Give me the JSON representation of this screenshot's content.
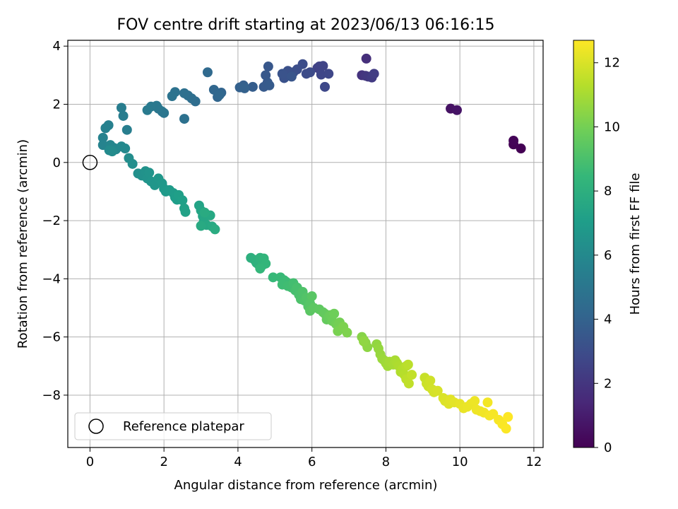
{
  "chart_data": {
    "type": "scatter",
    "title": "FOV centre drift starting at 2023/06/13 06:16:15",
    "xlabel": "Angular distance from reference (arcmin)",
    "ylabel": "Rotation from reference (arcmin)",
    "xlim": [
      -0.6,
      12.25
    ],
    "ylim": [
      -9.8,
      4.2
    ],
    "x_ticks": [
      0,
      2,
      4,
      6,
      8,
      10,
      12
    ],
    "y_ticks": [
      -8,
      -6,
      -4,
      -2,
      0,
      2,
      4
    ],
    "grid": true,
    "legend": {
      "placement": "lower-left",
      "entries": [
        "Reference platepar"
      ]
    },
    "colormap": "viridis",
    "colorbar": {
      "label": "Hours from first FF file",
      "range": [
        0,
        12.7
      ],
      "ticks": [
        0,
        2,
        4,
        6,
        8,
        10,
        12
      ],
      "colors": [
        "#440154",
        "#482878",
        "#3e4989",
        "#31688e",
        "#26828e",
        "#1f9e89",
        "#35b779",
        "#6ece58",
        "#b5de2b",
        "#fde725"
      ]
    },
    "reference_point": {
      "x": 0,
      "y": 0,
      "name": "Reference platepar"
    },
    "points": [
      [
        11.65,
        0.48,
        0.0
      ],
      [
        11.45,
        0.62,
        0.05
      ],
      [
        11.45,
        0.75,
        0.1
      ],
      [
        9.75,
        1.85,
        0.6
      ],
      [
        9.92,
        1.8,
        0.7
      ],
      [
        7.47,
        3.57,
        1.7
      ],
      [
        7.35,
        3.0,
        1.9
      ],
      [
        7.45,
        2.98,
        2.0
      ],
      [
        7.52,
        2.95,
        2.1
      ],
      [
        7.62,
        2.92,
        2.2
      ],
      [
        7.68,
        3.05,
        2.3
      ],
      [
        6.15,
        3.25,
        2.5
      ],
      [
        6.2,
        3.3,
        2.55
      ],
      [
        6.3,
        3.32,
        2.6
      ],
      [
        6.25,
        3.02,
        2.7
      ],
      [
        6.45,
        3.05,
        2.75
      ],
      [
        6.35,
        2.6,
        2.8
      ],
      [
        5.95,
        3.1,
        2.9
      ],
      [
        5.85,
        3.05,
        2.95
      ],
      [
        5.75,
        3.38,
        3.0
      ],
      [
        5.6,
        3.2,
        3.05
      ],
      [
        5.5,
        3.1,
        3.1
      ],
      [
        5.35,
        3.15,
        3.15
      ],
      [
        5.3,
        3.05,
        3.2
      ],
      [
        5.25,
        2.9,
        3.25
      ],
      [
        5.2,
        3.05,
        3.3
      ],
      [
        5.45,
        2.95,
        3.35
      ],
      [
        4.82,
        3.3,
        3.45
      ],
      [
        4.75,
        3.0,
        3.5
      ],
      [
        4.8,
        2.75,
        3.55
      ],
      [
        4.7,
        2.6,
        3.6
      ],
      [
        4.85,
        2.65,
        3.65
      ],
      [
        4.4,
        2.6,
        3.75
      ],
      [
        4.15,
        2.65,
        3.85
      ],
      [
        4.05,
        2.58,
        3.9
      ],
      [
        4.18,
        2.55,
        3.95
      ],
      [
        3.55,
        2.4,
        4.1
      ],
      [
        3.45,
        2.25,
        4.15
      ],
      [
        3.35,
        2.5,
        4.2
      ],
      [
        3.5,
        2.32,
        4.25
      ],
      [
        3.18,
        3.1,
        4.35
      ],
      [
        2.85,
        2.1,
        4.5
      ],
      [
        2.75,
        2.2,
        4.55
      ],
      [
        2.65,
        2.3,
        4.6
      ],
      [
        2.55,
        2.38,
        4.65
      ],
      [
        2.55,
        1.5,
        4.7
      ],
      [
        2.3,
        2.42,
        4.8
      ],
      [
        2.22,
        2.28,
        4.85
      ],
      [
        2.0,
        1.7,
        4.95
      ],
      [
        1.95,
        1.75,
        5.0
      ],
      [
        1.85,
        1.85,
        5.05
      ],
      [
        1.8,
        1.95,
        5.1
      ],
      [
        1.65,
        1.92,
        5.15
      ],
      [
        1.55,
        1.8,
        5.2
      ],
      [
        0.85,
        1.88,
        5.35
      ],
      [
        0.9,
        1.6,
        5.4
      ],
      [
        1.0,
        1.12,
        5.45
      ],
      [
        0.5,
        1.28,
        5.55
      ],
      [
        0.42,
        1.18,
        5.6
      ],
      [
        0.35,
        0.85,
        5.65
      ],
      [
        0.35,
        0.6,
        5.7
      ],
      [
        0.55,
        0.6,
        5.8
      ],
      [
        0.65,
        0.5,
        5.85
      ],
      [
        0.7,
        0.45,
        5.9
      ],
      [
        0.85,
        0.55,
        5.95
      ],
      [
        0.95,
        0.48,
        6.0
      ],
      [
        0.52,
        0.42,
        6.05
      ],
      [
        0.6,
        0.38,
        6.1
      ],
      [
        1.05,
        0.15,
        6.2
      ],
      [
        1.15,
        -0.05,
        6.25
      ],
      [
        1.3,
        -0.38,
        6.35
      ],
      [
        1.4,
        -0.45,
        6.4
      ],
      [
        1.5,
        -0.3,
        6.45
      ],
      [
        1.55,
        -0.55,
        6.5
      ],
      [
        1.6,
        -0.35,
        6.55
      ],
      [
        1.65,
        -0.65,
        6.6
      ],
      [
        1.75,
        -0.78,
        6.65
      ],
      [
        1.85,
        -0.55,
        6.7
      ],
      [
        1.95,
        -0.72,
        6.75
      ],
      [
        2.0,
        -0.9,
        6.8
      ],
      [
        2.05,
        -1.0,
        6.85
      ],
      [
        2.15,
        -0.95,
        6.9
      ],
      [
        2.25,
        -1.05,
        6.95
      ],
      [
        2.3,
        -1.2,
        7.0
      ],
      [
        2.35,
        -1.28,
        7.05
      ],
      [
        2.4,
        -1.12,
        7.1
      ],
      [
        2.5,
        -1.3,
        7.15
      ],
      [
        2.55,
        -1.58,
        7.2
      ],
      [
        2.58,
        -1.7,
        7.25
      ],
      [
        2.95,
        -1.48,
        7.35
      ],
      [
        3.0,
        -1.65,
        7.4
      ],
      [
        3.05,
        -1.85,
        7.45
      ],
      [
        3.08,
        -2.0,
        7.5
      ],
      [
        3.15,
        -2.15,
        7.55
      ],
      [
        3.25,
        -1.82,
        7.6
      ],
      [
        3.3,
        -2.2,
        7.65
      ],
      [
        3.0,
        -2.18,
        7.7
      ],
      [
        3.1,
        -1.72,
        7.75
      ],
      [
        3.38,
        -2.3,
        7.8
      ],
      [
        4.35,
        -3.28,
        8.0
      ],
      [
        4.45,
        -3.35,
        8.05
      ],
      [
        4.5,
        -3.45,
        8.1
      ],
      [
        4.55,
        -3.5,
        8.15
      ],
      [
        4.6,
        -3.28,
        8.2
      ],
      [
        4.65,
        -3.55,
        8.25
      ],
      [
        4.7,
        -3.3,
        8.3
      ],
      [
        4.75,
        -3.48,
        8.35
      ],
      [
        4.6,
        -3.65,
        8.4
      ],
      [
        4.95,
        -3.95,
        8.5
      ],
      [
        5.15,
        -3.95,
        8.55
      ],
      [
        5.25,
        -4.05,
        8.6
      ],
      [
        5.3,
        -4.1,
        8.65
      ],
      [
        5.2,
        -4.2,
        8.7
      ],
      [
        5.35,
        -4.25,
        8.75
      ],
      [
        5.45,
        -4.3,
        8.8
      ],
      [
        5.5,
        -4.15,
        8.85
      ],
      [
        5.55,
        -4.4,
        8.9
      ],
      [
        5.6,
        -4.3,
        8.95
      ],
      [
        5.65,
        -4.55,
        9.0
      ],
      [
        5.7,
        -4.7,
        9.05
      ],
      [
        5.75,
        -4.45,
        9.1
      ],
      [
        5.8,
        -4.75,
        9.15
      ],
      [
        5.85,
        -4.65,
        9.2
      ],
      [
        5.9,
        -4.95,
        9.25
      ],
      [
        5.95,
        -4.85,
        9.3
      ],
      [
        6.0,
        -4.6,
        9.35
      ],
      [
        5.95,
        -5.1,
        9.4
      ],
      [
        6.05,
        -5.0,
        9.45
      ],
      [
        6.2,
        -5.05,
        9.5
      ],
      [
        6.3,
        -5.15,
        9.55
      ],
      [
        6.35,
        -5.2,
        9.6
      ],
      [
        6.4,
        -5.4,
        9.65
      ],
      [
        6.45,
        -5.3,
        9.7
      ],
      [
        6.5,
        -5.25,
        9.75
      ],
      [
        6.55,
        -5.45,
        9.8
      ],
      [
        6.6,
        -5.2,
        9.85
      ],
      [
        6.65,
        -5.55,
        9.9
      ],
      [
        6.7,
        -5.6,
        9.95
      ],
      [
        6.75,
        -5.5,
        10.0
      ],
      [
        6.8,
        -5.7,
        10.05
      ],
      [
        6.7,
        -5.8,
        10.1
      ],
      [
        6.85,
        -5.65,
        10.15
      ],
      [
        6.95,
        -5.85,
        10.2
      ],
      [
        7.35,
        -6.0,
        10.35
      ],
      [
        7.4,
        -6.1,
        10.4
      ],
      [
        7.45,
        -6.2,
        10.45
      ],
      [
        7.5,
        -6.35,
        10.5
      ],
      [
        7.4,
        -6.15,
        10.55
      ],
      [
        7.75,
        -6.25,
        10.6
      ],
      [
        7.8,
        -6.4,
        10.65
      ],
      [
        7.85,
        -6.6,
        10.7
      ],
      [
        7.9,
        -6.75,
        10.75
      ],
      [
        7.95,
        -6.8,
        10.8
      ],
      [
        8.0,
        -6.9,
        10.85
      ],
      [
        8.05,
        -7.0,
        10.9
      ],
      [
        8.1,
        -6.85,
        10.95
      ],
      [
        8.2,
        -6.95,
        11.0
      ],
      [
        8.25,
        -6.8,
        11.05
      ],
      [
        8.3,
        -6.9,
        11.1
      ],
      [
        8.35,
        -7.0,
        11.15
      ],
      [
        8.4,
        -7.2,
        11.2
      ],
      [
        8.45,
        -7.1,
        11.25
      ],
      [
        8.5,
        -7.3,
        11.3
      ],
      [
        8.55,
        -7.0,
        11.35
      ],
      [
        8.6,
        -6.95,
        11.4
      ],
      [
        8.55,
        -7.45,
        11.45
      ],
      [
        8.62,
        -7.6,
        11.5
      ],
      [
        8.7,
        -7.3,
        11.55
      ],
      [
        9.05,
        -7.4,
        11.65
      ],
      [
        9.1,
        -7.6,
        11.7
      ],
      [
        9.15,
        -7.7,
        11.75
      ],
      [
        9.2,
        -7.5,
        11.8
      ],
      [
        9.25,
        -7.8,
        11.85
      ],
      [
        9.3,
        -7.9,
        11.9
      ],
      [
        9.4,
        -7.85,
        11.95
      ],
      [
        9.55,
        -8.1,
        12.0
      ],
      [
        9.6,
        -8.2,
        12.05
      ],
      [
        9.7,
        -8.3,
        12.1
      ],
      [
        9.75,
        -8.15,
        12.15
      ],
      [
        9.85,
        -8.25,
        12.2
      ],
      [
        10.0,
        -8.3,
        12.25
      ],
      [
        10.1,
        -8.45,
        12.3
      ],
      [
        10.2,
        -8.4,
        12.32
      ],
      [
        10.3,
        -8.3,
        12.35
      ],
      [
        10.4,
        -8.2,
        12.38
      ],
      [
        10.45,
        -8.5,
        12.4
      ],
      [
        10.55,
        -8.55,
        12.43
      ],
      [
        10.65,
        -8.6,
        12.46
      ],
      [
        10.75,
        -8.25,
        12.5
      ],
      [
        10.8,
        -8.7,
        12.53
      ],
      [
        10.9,
        -8.65,
        12.56
      ],
      [
        11.05,
        -8.85,
        12.6
      ],
      [
        11.15,
        -9.0,
        12.63
      ],
      [
        11.25,
        -9.15,
        12.66
      ],
      [
        11.3,
        -8.75,
        12.7
      ]
    ]
  }
}
